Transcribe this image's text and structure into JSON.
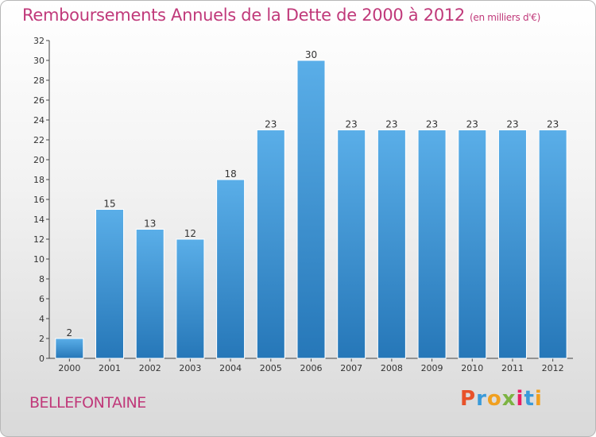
{
  "page": {
    "title": "Remboursements Annuels de la Dette de 2000 à 2012",
    "subtitle": "(en milliers d'€)",
    "commune": "BELLEFONTAINE",
    "logo_text": "Proxiti",
    "colors": {
      "title": "#c0397a",
      "bar_top": "#5aaee8",
      "bar_bottom": "#2677b8",
      "logo": [
        "#e8522a",
        "#3a9ad9",
        "#f0a020",
        "#7cb342",
        "#e91e63",
        "#3a9ad9",
        "#f0a020"
      ]
    }
  },
  "chart_data": {
    "type": "bar",
    "title": "Remboursements Annuels de la Dette de 2000 à 2012",
    "subtitle": "(en milliers d'€)",
    "xlabel": "",
    "ylabel": "",
    "categories": [
      "2000",
      "2001",
      "2002",
      "2003",
      "2004",
      "2005",
      "2006",
      "2007",
      "2008",
      "2009",
      "2010",
      "2011",
      "2012"
    ],
    "values": [
      2,
      15,
      13,
      12,
      18,
      23,
      30,
      23,
      23,
      23,
      23,
      23,
      23
    ],
    "data_labels": [
      "2",
      "15",
      "13",
      "12",
      "18",
      "23",
      "30",
      "23",
      "23",
      "23",
      "23",
      "23",
      "23"
    ],
    "ylim": [
      0,
      32
    ],
    "yticks": [
      0,
      2,
      4,
      6,
      8,
      10,
      12,
      14,
      16,
      18,
      20,
      22,
      24,
      26,
      28,
      30,
      32
    ],
    "grid": false,
    "legend": "none"
  }
}
